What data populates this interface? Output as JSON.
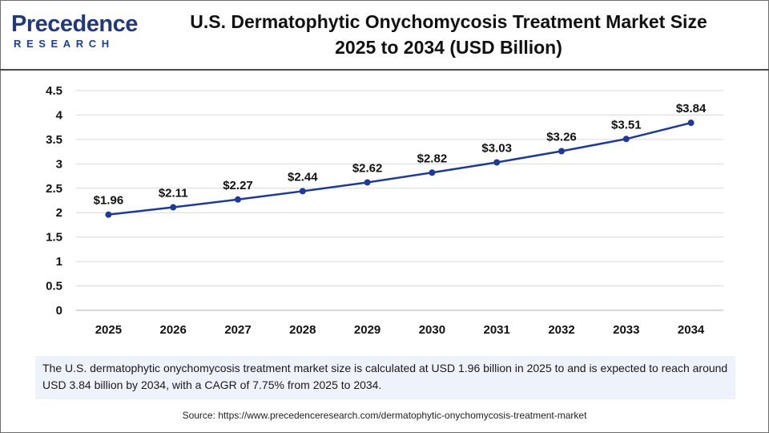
{
  "brand": {
    "name_first": "P",
    "name_rest": "recedence",
    "tagline": "RESEARCH"
  },
  "title_line1": "U.S. Dermatophytic Onychomycosis Treatment Market Size",
  "title_line2": "2025 to 2034 (USD Billion)",
  "colors": {
    "line": "#1f3a93",
    "marker": "#1f3a93",
    "grid": "#d9d9d9",
    "axis": "#bfbfbf",
    "desc_bg": "#eef2fb"
  },
  "chart_data": {
    "type": "line",
    "title": "U.S. Dermatophytic Onychomycosis Treatment Market Size 2025 to 2034 (USD Billion)",
    "xlabel": "",
    "ylabel": "",
    "categories": [
      "2025",
      "2026",
      "2027",
      "2028",
      "2029",
      "2030",
      "2031",
      "2032",
      "2033",
      "2034"
    ],
    "series": [
      {
        "name": "Market Size (USD Billion)",
        "values": [
          1.96,
          2.11,
          2.27,
          2.44,
          2.62,
          2.82,
          3.03,
          3.26,
          3.51,
          3.84
        ],
        "labels": [
          "$1.96",
          "$2.11",
          "$2.27",
          "$2.44",
          "$2.62",
          "$2.82",
          "$3.03",
          "$3.26",
          "$3.51",
          "$3.84"
        ]
      }
    ],
    "ylim": [
      0,
      4.5
    ],
    "yticks": [
      0,
      0.5,
      1,
      1.5,
      2,
      2.5,
      3,
      3.5,
      4,
      4.5
    ],
    "ytick_labels": [
      "0",
      "0.5",
      "1",
      "1.5",
      "2",
      "2.5",
      "3",
      "3.5",
      "4",
      "4.5"
    ],
    "grid": true,
    "legend": "none"
  },
  "description": "The U.S. dermatophytic onychomycosis treatment market size is calculated at USD 1.96 billion in 2025 to and is expected to reach around USD 3.84 billion by 2034, with a CAGR of 7.75% from 2025 to 2034.",
  "source": "Source: https://www.precedenceresearch.com/dermatophytic-onychomycosis-treatment-market"
}
